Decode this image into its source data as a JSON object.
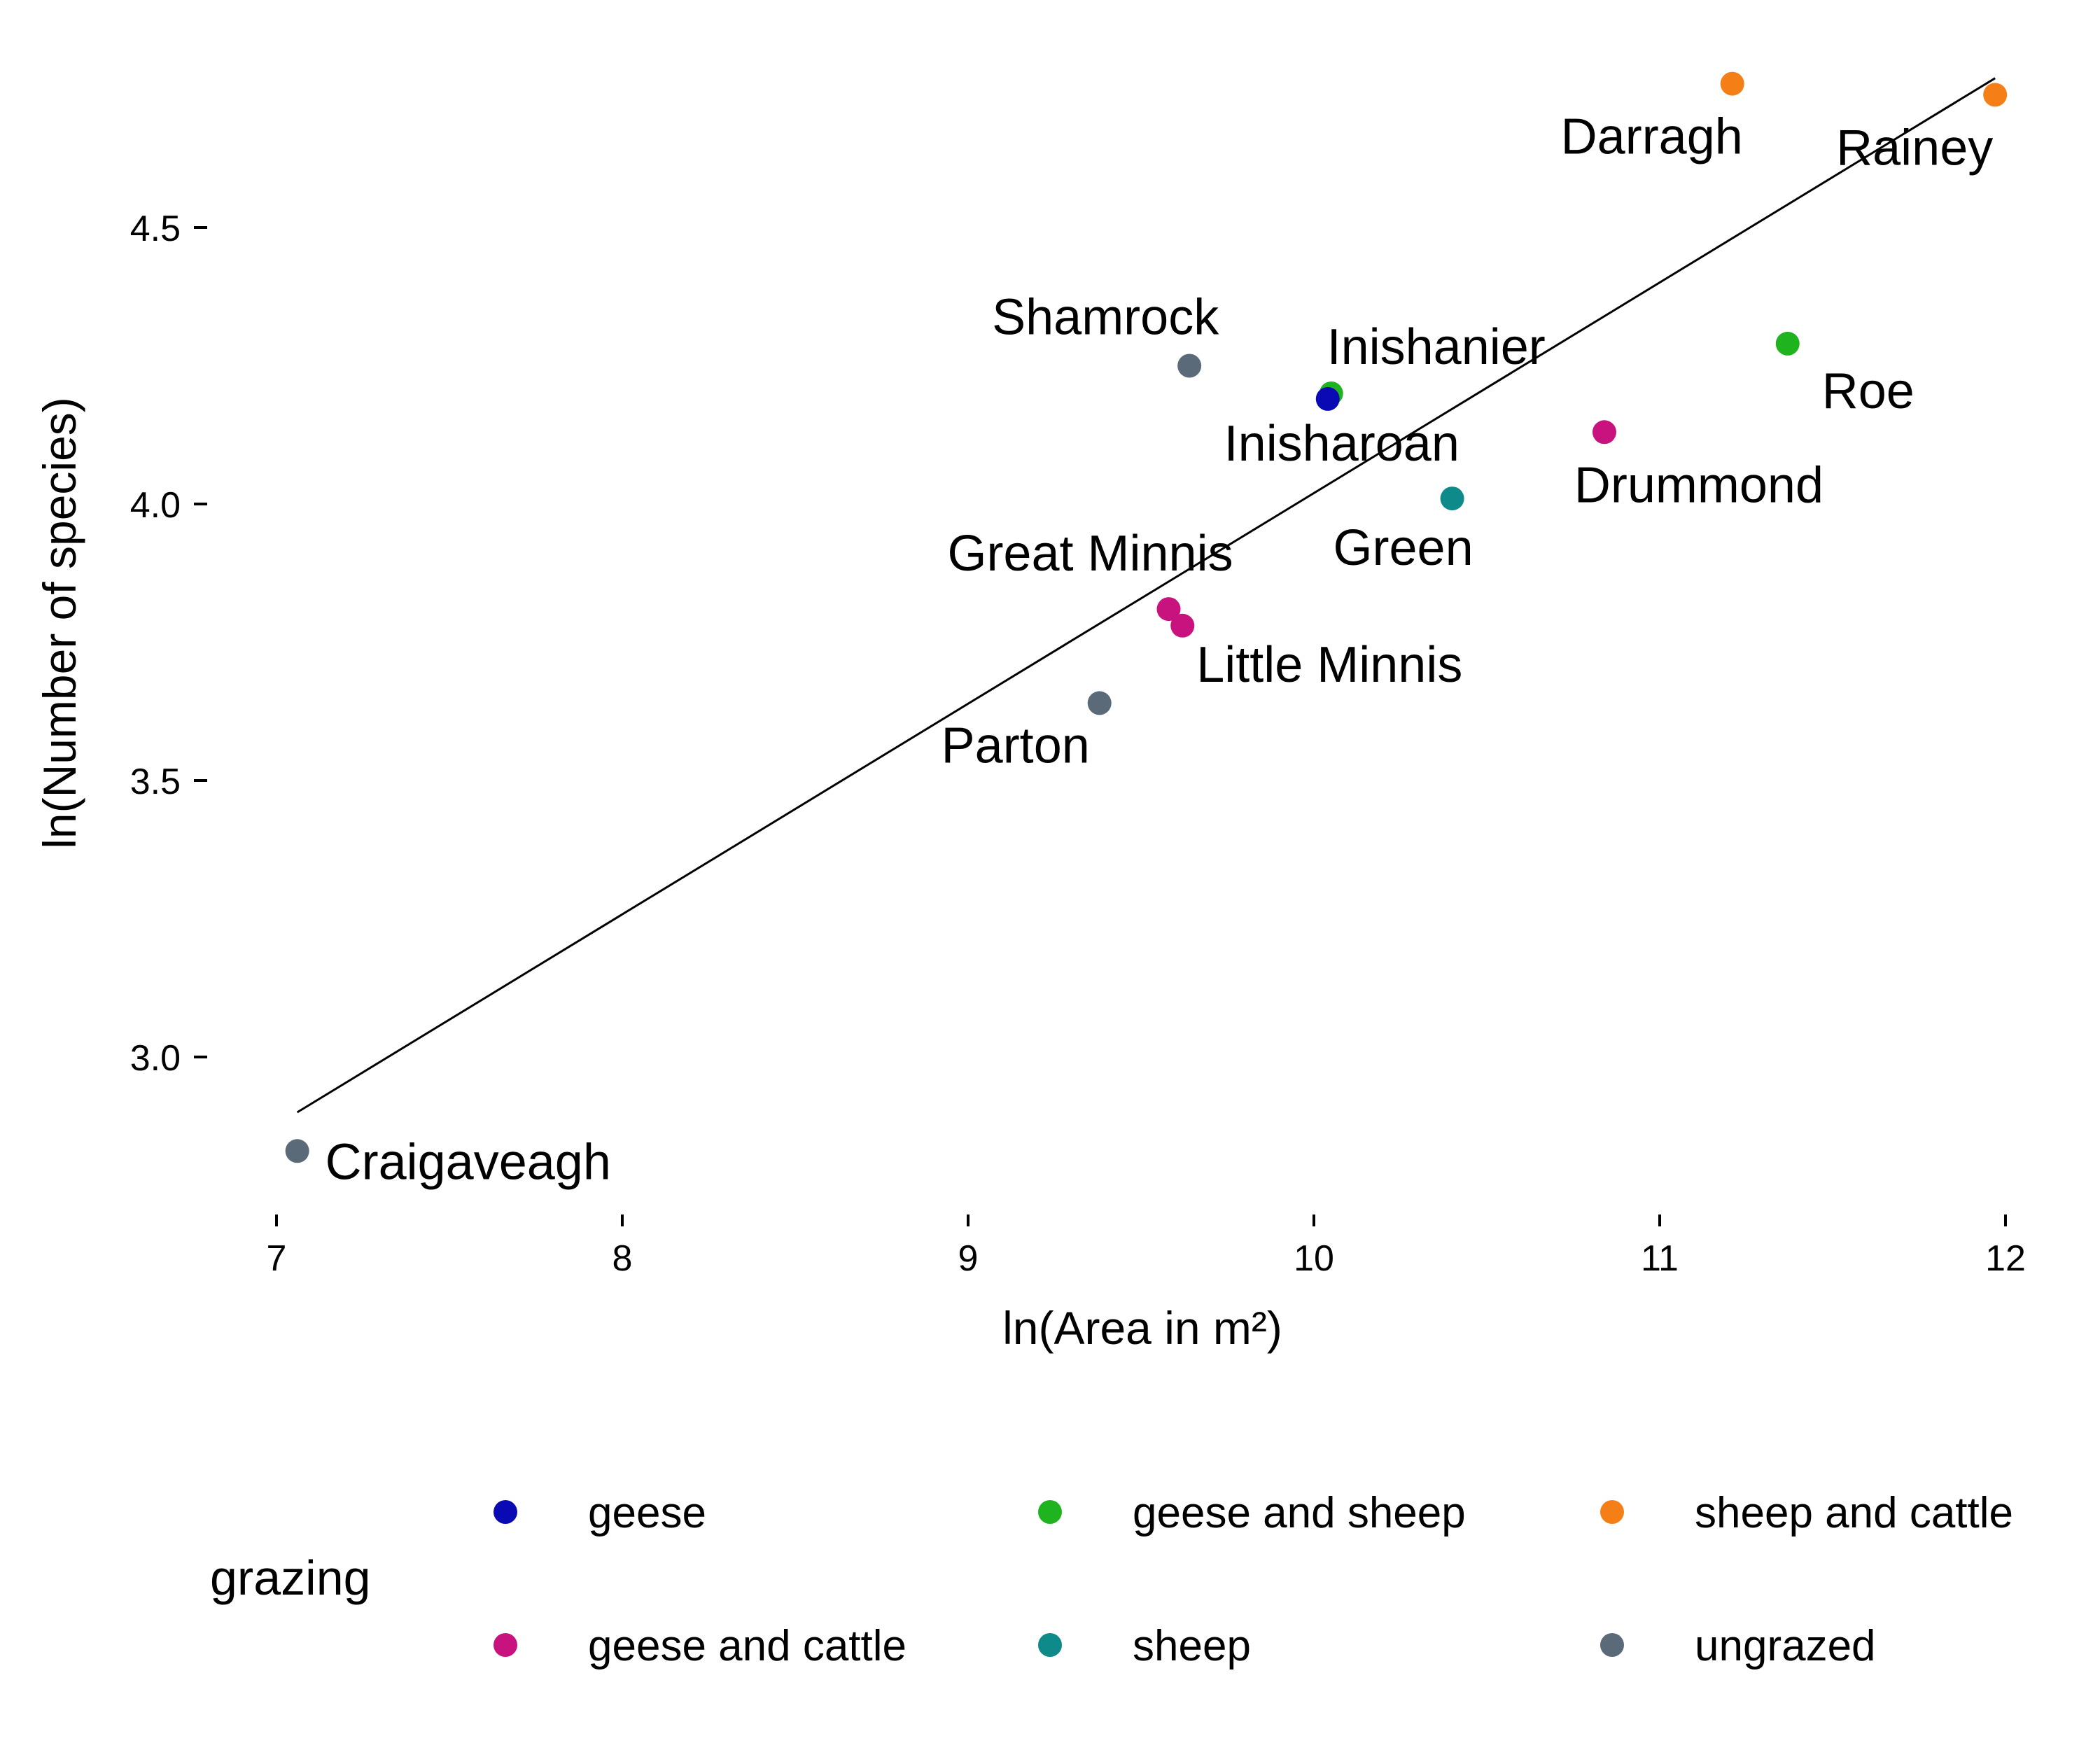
{
  "chart_data": {
    "type": "scatter",
    "title": "",
    "xlabel": "ln(Area in m²)",
    "ylabel": "ln(Number of species)",
    "xlim": [
      6.95,
      12.1
    ],
    "ylim": [
      2.72,
      4.82
    ],
    "xticks": [
      7,
      8,
      9,
      10,
      11,
      12
    ],
    "yticks": [
      3.0,
      3.5,
      4.0,
      4.5
    ],
    "ytick_labels": [
      "3.0",
      "3.5",
      "4.0",
      "4.5"
    ],
    "grid": false,
    "legend": {
      "title": "grazing",
      "position": "bottom",
      "entries": [
        {
          "label": "geese",
          "color": "#0a0ab4"
        },
        {
          "label": "geese and sheep",
          "color": "#1fb41f"
        },
        {
          "label": "sheep and cattle",
          "color": "#f57f17"
        },
        {
          "label": "geese and cattle",
          "color": "#c8127d"
        },
        {
          "label": "sheep",
          "color": "#0e8a8a"
        },
        {
          "label": "ungrazed",
          "color": "#5a6a78"
        }
      ]
    },
    "points": [
      {
        "name": "Craigaveagh",
        "x": 7.06,
        "y": 2.83,
        "grazing": "ungrazed"
      },
      {
        "name": "Parton",
        "x": 9.38,
        "y": 3.64,
        "grazing": "ungrazed"
      },
      {
        "name": "Great Minnis",
        "x": 9.58,
        "y": 3.81,
        "grazing": "geese and cattle"
      },
      {
        "name": "Little Minnis",
        "x": 9.62,
        "y": 3.78,
        "grazing": "geese and cattle"
      },
      {
        "name": "Shamrock",
        "x": 9.64,
        "y": 4.25,
        "grazing": "ungrazed"
      },
      {
        "name": "Inishanier",
        "x": 10.05,
        "y": 4.2,
        "grazing": "geese and sheep"
      },
      {
        "name": "Inisharoan",
        "x": 10.04,
        "y": 4.19,
        "grazing": "geese"
      },
      {
        "name": "Green",
        "x": 10.4,
        "y": 4.01,
        "grazing": "sheep"
      },
      {
        "name": "Drummond",
        "x": 10.84,
        "y": 4.13,
        "grazing": "geese and cattle"
      },
      {
        "name": "Roe",
        "x": 11.37,
        "y": 4.29,
        "grazing": "geese and sheep"
      },
      {
        "name": "Darragh",
        "x": 11.21,
        "y": 4.76,
        "grazing": "sheep and cattle"
      },
      {
        "name": "Rainey",
        "x": 11.97,
        "y": 4.74,
        "grazing": "sheep and cattle"
      }
    ],
    "fit_line": {
      "x": [
        7.06,
        11.97
      ],
      "y": [
        2.9,
        4.77
      ]
    }
  }
}
